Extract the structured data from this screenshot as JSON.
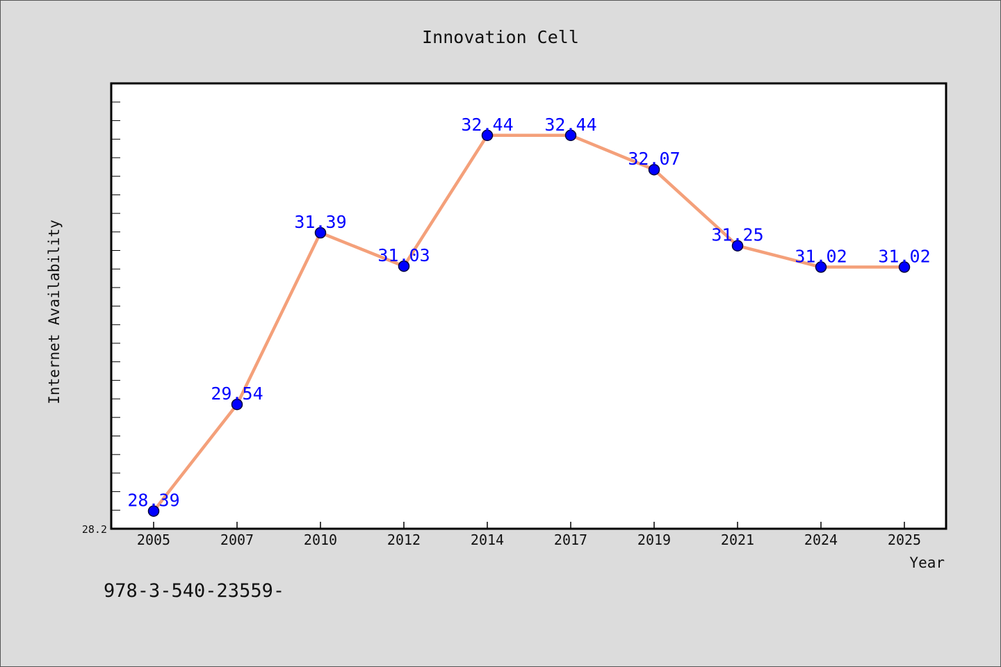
{
  "chart_data": {
    "type": "line",
    "title": "Innovation Cell",
    "xlabel": "Year",
    "ylabel": "Internet Availability",
    "categories": [
      "2005",
      "2007",
      "2010",
      "2012",
      "2014",
      "2017",
      "2019",
      "2021",
      "2024",
      "2025"
    ],
    "series": [
      {
        "values": [
          28.39,
          29.54,
          31.39,
          31.03,
          32.44,
          32.44,
          32.07,
          31.25,
          31.02,
          31.02
        ]
      }
    ],
    "data_labels": [
      "28.39",
      "29.54",
      "31.39",
      "31.03",
      "32.44",
      "32.44",
      "32.07",
      "31.25",
      "31.02",
      "31.02"
    ],
    "ylim": [
      28.2,
      33.0
    ],
    "yticks": [
      "28.2"
    ],
    "grid": false,
    "colors": {
      "line": "#f4a07a",
      "marker": "#0000ff",
      "marker_edge": "#00003a",
      "label": "#0000ff",
      "plot_bg": "#ffffff",
      "page_bg": "#dcdcdc"
    }
  },
  "footer": {
    "text": "978-3-540-23559-"
  }
}
